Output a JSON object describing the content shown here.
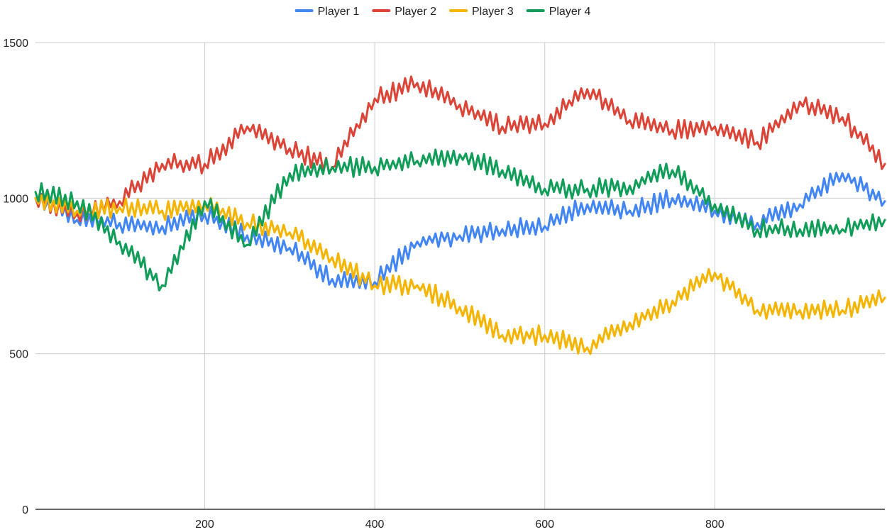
{
  "chart_data": {
    "type": "line",
    "title": "",
    "xlabel": "",
    "ylabel": "",
    "xlim": [
      1,
      1000
    ],
    "ylim": [
      0,
      1500
    ],
    "x_ticks": [
      "200",
      "400",
      "600",
      "800"
    ],
    "y_ticks": [
      "0",
      "500",
      "1000",
      "1500"
    ],
    "grid": true,
    "legend": "top-center",
    "x": [
      1,
      50,
      100,
      150,
      200,
      250,
      300,
      350,
      400,
      450,
      500,
      550,
      600,
      650,
      700,
      750,
      800,
      850,
      900,
      950,
      1000
    ],
    "series": [
      {
        "name": "Player 1",
        "color": "#4285f4",
        "values": [
          1000,
          930,
          920,
          910,
          950,
          880,
          840,
          740,
          730,
          860,
          880,
          900,
          910,
          980,
          960,
          1000,
          960,
          920,
          980,
          1080,
          990
        ]
      },
      {
        "name": "Player 2",
        "color": "#db4437",
        "values": [
          1000,
          950,
          990,
          1110,
          1110,
          1230,
          1160,
          1100,
          1320,
          1370,
          1300,
          1230,
          1240,
          1350,
          1250,
          1220,
          1230,
          1180,
          1310,
          1260,
          1110
        ]
      },
      {
        "name": "Player 3",
        "color": "#f4b400",
        "values": [
          1000,
          960,
          970,
          960,
          980,
          920,
          890,
          810,
          720,
          720,
          650,
          560,
          560,
          520,
          600,
          670,
          760,
          640,
          640,
          640,
          680
        ]
      },
      {
        "name": "Player 4",
        "color": "#0f9d58",
        "values": [
          1020,
          990,
          860,
          720,
          990,
          850,
          1080,
          1100,
          1100,
          1120,
          1140,
          1090,
          1030,
          1030,
          1040,
          1090,
          980,
          900,
          900,
          900,
          930
        ]
      }
    ]
  }
}
